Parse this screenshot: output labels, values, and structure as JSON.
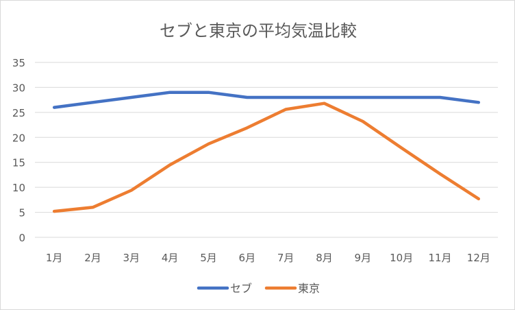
{
  "chart_data": {
    "type": "line",
    "title": "セブと東京の平均気温比較",
    "categories": [
      "1月",
      "2月",
      "3月",
      "4月",
      "5月",
      "6月",
      "7月",
      "8月",
      "9月",
      "10月",
      "11月",
      "12月"
    ],
    "ylim": [
      0,
      35
    ],
    "yticks": [
      0,
      5,
      10,
      15,
      20,
      25,
      30,
      35
    ],
    "grid": true,
    "legend": "bottom",
    "series": [
      {
        "name": "セブ",
        "color": "#4472c4",
        "values": [
          26,
          27,
          28,
          29,
          29,
          28,
          28,
          28,
          28,
          28,
          28,
          27
        ]
      },
      {
        "name": "東京",
        "color": "#ed7d31",
        "values": [
          5.2,
          6.0,
          9.4,
          14.5,
          18.7,
          21.9,
          25.6,
          26.8,
          23.2,
          17.9,
          12.7,
          7.7
        ]
      }
    ]
  }
}
